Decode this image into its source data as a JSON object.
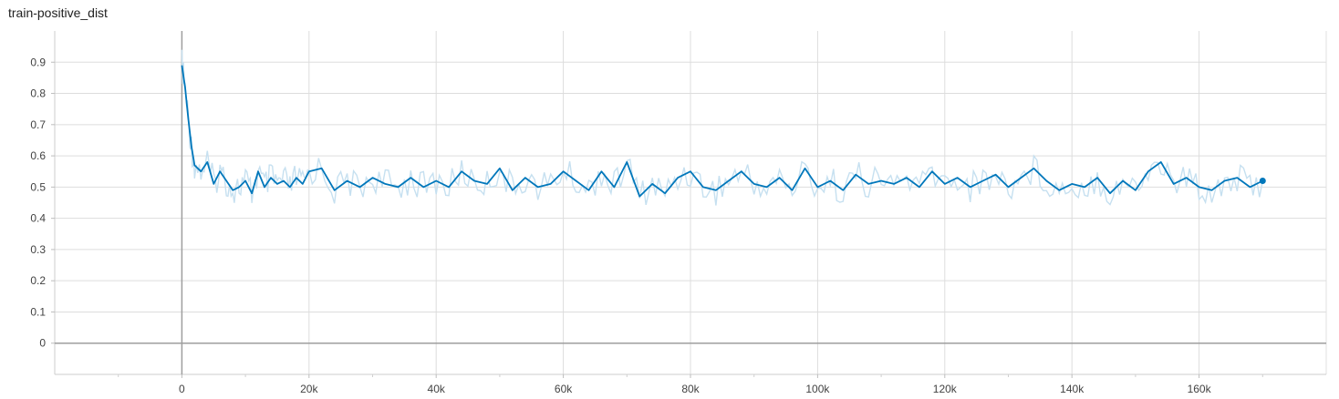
{
  "chart_data": {
    "type": "line",
    "title": "train-positive_dist",
    "xlabel": "",
    "ylabel": "",
    "xlim": [
      -20000,
      180000
    ],
    "ylim": [
      -0.1,
      1.0
    ],
    "grid": true,
    "x_ticks": [
      0,
      20000,
      40000,
      60000,
      80000,
      100000,
      120000,
      140000,
      160000
    ],
    "x_tick_labels": [
      "0",
      "20k",
      "40k",
      "60k",
      "80k",
      "100k",
      "120k",
      "140k",
      "160k"
    ],
    "y_ticks": [
      0,
      0.1,
      0.2,
      0.3,
      0.4,
      0.5,
      0.6,
      0.7,
      0.8,
      0.9
    ],
    "y_tick_labels": [
      "0",
      "0.1",
      "0.2",
      "0.3",
      "0.4",
      "0.5",
      "0.6",
      "0.7",
      "0.8",
      "0.9"
    ],
    "colors": {
      "smoothed": "#0077bb",
      "raw": "#c6e0f0",
      "grid": "#dddddd",
      "axis": "#9e9e9e"
    },
    "series": [
      {
        "x": [
          0,
          500,
          1000,
          1500,
          2000,
          3000,
          4000,
          5000,
          6000,
          7000,
          8000,
          9000,
          10000,
          11000,
          12000,
          13000,
          14000,
          15000,
          16000,
          17000,
          18000,
          19000,
          20000,
          22000,
          24000,
          26000,
          28000,
          30000,
          32000,
          34000,
          36000,
          38000,
          40000,
          42000,
          44000,
          46000,
          48000,
          50000,
          52000,
          54000,
          56000,
          58000,
          60000,
          62000,
          64000,
          66000,
          68000,
          70000,
          72000,
          74000,
          76000,
          78000,
          80000,
          82000,
          84000,
          86000,
          88000,
          90000,
          92000,
          94000,
          96000,
          98000,
          100000,
          102000,
          104000,
          106000,
          108000,
          110000,
          112000,
          114000,
          116000,
          118000,
          120000,
          122000,
          124000,
          126000,
          128000,
          130000,
          132000,
          134000,
          136000,
          138000,
          140000,
          142000,
          144000,
          146000,
          148000,
          150000,
          152000,
          154000,
          156000,
          158000,
          160000,
          162000,
          164000,
          166000,
          168000,
          170000
        ],
        "y": [
          0.89,
          0.82,
          0.72,
          0.63,
          0.57,
          0.55,
          0.58,
          0.51,
          0.55,
          0.52,
          0.49,
          0.5,
          0.52,
          0.48,
          0.55,
          0.5,
          0.53,
          0.51,
          0.52,
          0.5,
          0.53,
          0.51,
          0.55,
          0.56,
          0.49,
          0.52,
          0.5,
          0.53,
          0.51,
          0.5,
          0.53,
          0.5,
          0.52,
          0.5,
          0.55,
          0.52,
          0.51,
          0.56,
          0.49,
          0.53,
          0.5,
          0.51,
          0.55,
          0.52,
          0.49,
          0.55,
          0.5,
          0.58,
          0.47,
          0.51,
          0.48,
          0.53,
          0.55,
          0.5,
          0.49,
          0.52,
          0.55,
          0.51,
          0.5,
          0.53,
          0.49,
          0.56,
          0.5,
          0.52,
          0.49,
          0.54,
          0.51,
          0.52,
          0.51,
          0.53,
          0.5,
          0.55,
          0.51,
          0.53,
          0.5,
          0.52,
          0.54,
          0.5,
          0.53,
          0.56,
          0.52,
          0.49,
          0.51,
          0.5,
          0.53,
          0.48,
          0.52,
          0.49,
          0.55,
          0.58,
          0.51,
          0.53,
          0.5,
          0.49,
          0.52,
          0.53,
          0.5,
          0.52
        ]
      }
    ]
  }
}
